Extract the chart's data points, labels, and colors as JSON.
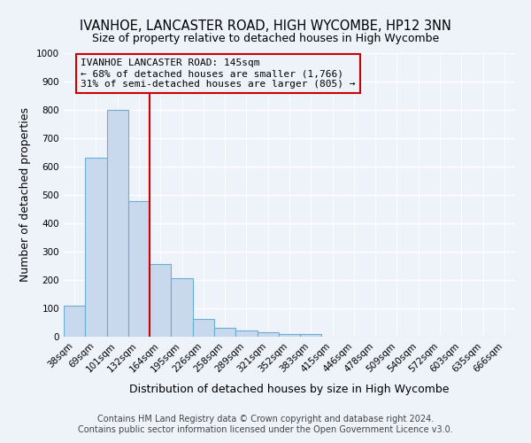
{
  "title": "IVANHOE, LANCASTER ROAD, HIGH WYCOMBE, HP12 3NN",
  "subtitle": "Size of property relative to detached houses in High Wycombe",
  "xlabel": "Distribution of detached houses by size in High Wycombe",
  "ylabel": "Number of detached properties",
  "categories": [
    "38sqm",
    "69sqm",
    "101sqm",
    "132sqm",
    "164sqm",
    "195sqm",
    "226sqm",
    "258sqm",
    "289sqm",
    "321sqm",
    "352sqm",
    "383sqm",
    "415sqm",
    "446sqm",
    "478sqm",
    "509sqm",
    "540sqm",
    "572sqm",
    "603sqm",
    "635sqm",
    "666sqm"
  ],
  "values": [
    110,
    630,
    800,
    478,
    255,
    205,
    62,
    30,
    22,
    15,
    10,
    10,
    0,
    0,
    0,
    0,
    0,
    0,
    0,
    0,
    0
  ],
  "bar_color": "#c9d9ed",
  "bar_edge_color": "#6aaed6",
  "bar_width": 1.0,
  "vline_x": 3.5,
  "vline_color": "#cc0000",
  "annotation_text": "IVANHOE LANCASTER ROAD: 145sqm\n← 68% of detached houses are smaller (1,766)\n31% of semi-detached houses are larger (805) →",
  "annotation_box_edgecolor": "#cc0000",
  "ylim": [
    0,
    1000
  ],
  "yticks": [
    0,
    100,
    200,
    300,
    400,
    500,
    600,
    700,
    800,
    900,
    1000
  ],
  "footer1": "Contains HM Land Registry data © Crown copyright and database right 2024.",
  "footer2": "Contains public sector information licensed under the Open Government Licence v3.0.",
  "bg_color": "#eef2f9",
  "grid_color": "#ffffff",
  "title_fontsize": 10.5,
  "axis_label_fontsize": 9,
  "tick_fontsize": 7.5,
  "annotation_fontsize": 8,
  "footer_fontsize": 7
}
